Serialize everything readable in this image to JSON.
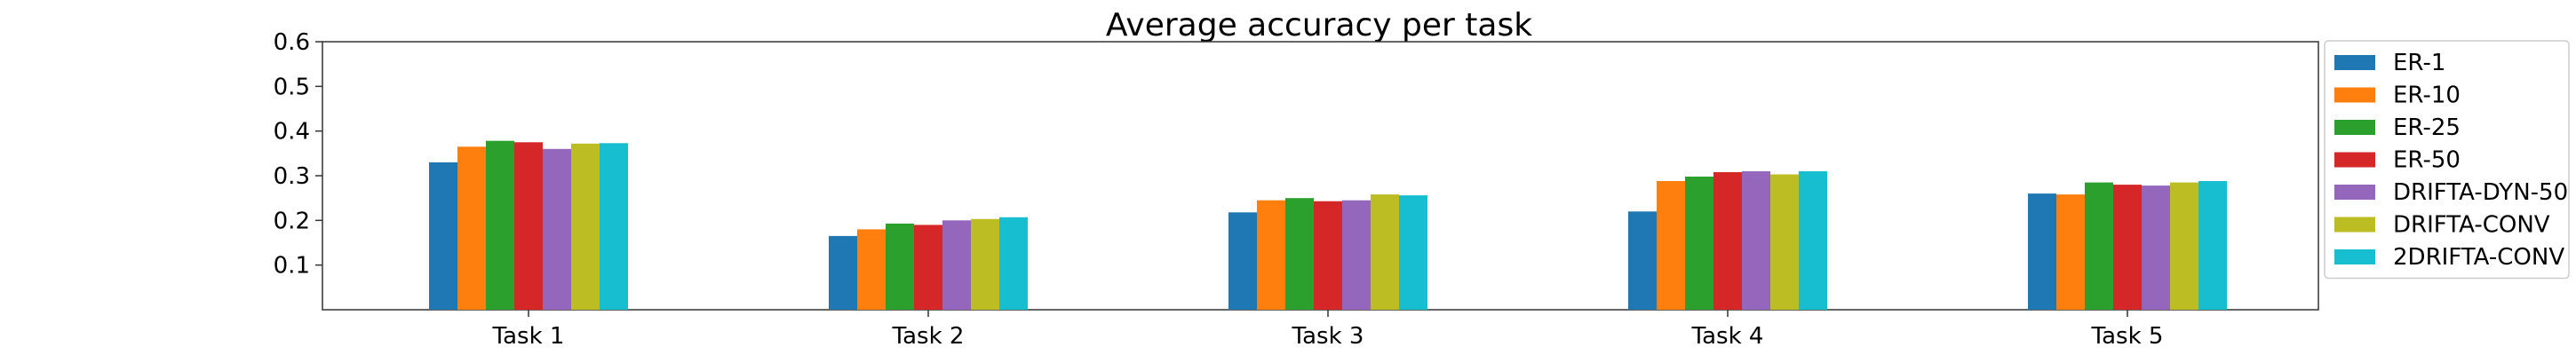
{
  "chart_data": {
    "type": "bar",
    "title": "Average accuracy per task",
    "xlabel": "",
    "ylabel": "",
    "categories": [
      "Task 1",
      "Task 2",
      "Task 3",
      "Task 4",
      "Task 5"
    ],
    "ylim": [
      0,
      0.6
    ],
    "yticks": [
      0.1,
      0.2,
      0.3,
      0.4,
      0.5,
      0.6
    ],
    "ytick_labels": [
      "0.1",
      "0.2",
      "0.3",
      "0.4",
      "0.5",
      "0.6"
    ],
    "grid": false,
    "legend_position": "outside-right-top",
    "series": [
      {
        "name": "ER-1",
        "color": "#1f77b4",
        "values": [
          0.33,
          0.165,
          0.218,
          0.22,
          0.26
        ]
      },
      {
        "name": "ER-10",
        "color": "#ff7f0e",
        "values": [
          0.365,
          0.18,
          0.245,
          0.288,
          0.258
        ]
      },
      {
        "name": "ER-25",
        "color": "#2ca02c",
        "values": [
          0.378,
          0.193,
          0.25,
          0.298,
          0.285
        ]
      },
      {
        "name": "ER-50",
        "color": "#d62728",
        "values": [
          0.375,
          0.19,
          0.243,
          0.308,
          0.28
        ]
      },
      {
        "name": "DRIFTA-DYN-50",
        "color": "#9467bd",
        "values": [
          0.36,
          0.2,
          0.245,
          0.31,
          0.278
        ]
      },
      {
        "name": "DRIFTA-CONV",
        "color": "#bcbd22",
        "values": [
          0.372,
          0.203,
          0.258,
          0.303,
          0.285
        ]
      },
      {
        "name": "2DRIFTA-CONV",
        "color": "#17becf",
        "values": [
          0.373,
          0.207,
          0.256,
          0.31,
          0.288
        ]
      }
    ]
  }
}
